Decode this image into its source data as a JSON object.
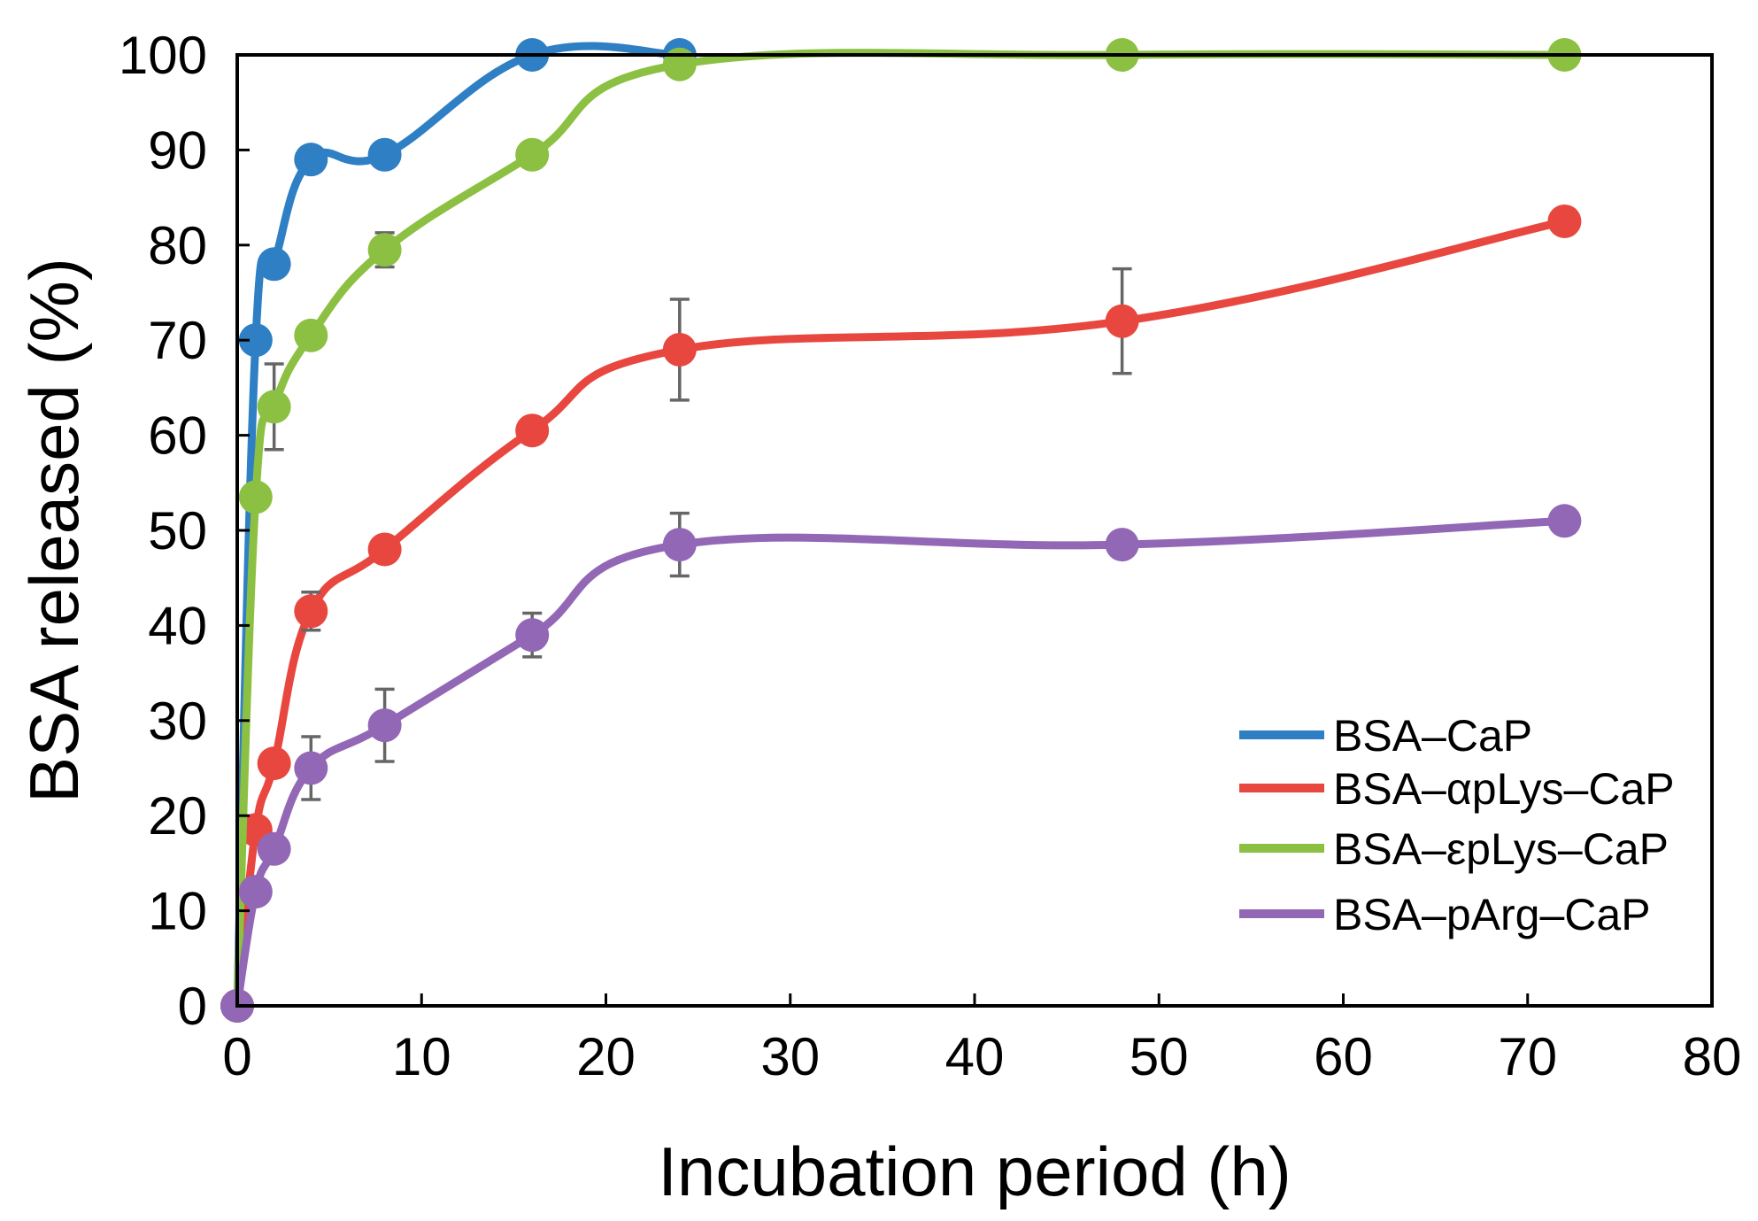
{
  "chart_data": {
    "type": "line",
    "xlabel": "Incubation period (h)",
    "ylabel": "BSA released (%)",
    "xlim": [
      0,
      80
    ],
    "ylim": [
      0,
      100
    ],
    "xticks": [
      0,
      10,
      20,
      30,
      40,
      50,
      60,
      70,
      80
    ],
    "yticks": [
      0,
      10,
      20,
      30,
      40,
      50,
      60,
      70,
      80,
      90,
      100
    ],
    "grid": false,
    "legend_position": "bottom-right",
    "series": [
      {
        "name": "BSA–CaP",
        "color": "#2e7fc4",
        "points": [
          {
            "x": 0,
            "y": 0
          },
          {
            "x": 1,
            "y": 70
          },
          {
            "x": 2,
            "y": 78
          },
          {
            "x": 4,
            "y": 89
          },
          {
            "x": 8,
            "y": 89.5
          },
          {
            "x": 16,
            "y": 100
          },
          {
            "x": 24,
            "y": 100
          }
        ]
      },
      {
        "name": "BSA–αpLys–CaP",
        "color": "#e8473f",
        "points": [
          {
            "x": 0,
            "y": 0
          },
          {
            "x": 1,
            "y": 18.5
          },
          {
            "x": 2,
            "y": 25.5
          },
          {
            "x": 4,
            "y": 41.5,
            "err": 2
          },
          {
            "x": 8,
            "y": 48
          },
          {
            "x": 16,
            "y": 60.5
          },
          {
            "x": 24,
            "y": 69,
            "err": 5.3
          },
          {
            "x": 48,
            "y": 72,
            "err": 5.5
          },
          {
            "x": 72,
            "y": 82.5
          }
        ]
      },
      {
        "name": "BSA–εpLys–CaP",
        "color": "#8cc043",
        "points": [
          {
            "x": 0,
            "y": 0
          },
          {
            "x": 1,
            "y": 53.5
          },
          {
            "x": 2,
            "y": 63,
            "err": 4.5
          },
          {
            "x": 4,
            "y": 70.5
          },
          {
            "x": 8,
            "y": 79.5,
            "err": 1.8
          },
          {
            "x": 16,
            "y": 89.5
          },
          {
            "x": 24,
            "y": 99
          },
          {
            "x": 48,
            "y": 100
          },
          {
            "x": 72,
            "y": 100
          }
        ]
      },
      {
        "name": "BSA–pArg–CaP",
        "color": "#9267b5",
        "points": [
          {
            "x": 0,
            "y": 0
          },
          {
            "x": 1,
            "y": 12
          },
          {
            "x": 2,
            "y": 16.5
          },
          {
            "x": 4,
            "y": 25,
            "err": 3.3
          },
          {
            "x": 8,
            "y": 29.5,
            "err": 3.8
          },
          {
            "x": 16,
            "y": 39,
            "err": 2.3
          },
          {
            "x": 24,
            "y": 48.5,
            "err": 3.3
          },
          {
            "x": 48,
            "y": 48.5
          },
          {
            "x": 72,
            "y": 51
          }
        ]
      }
    ]
  }
}
